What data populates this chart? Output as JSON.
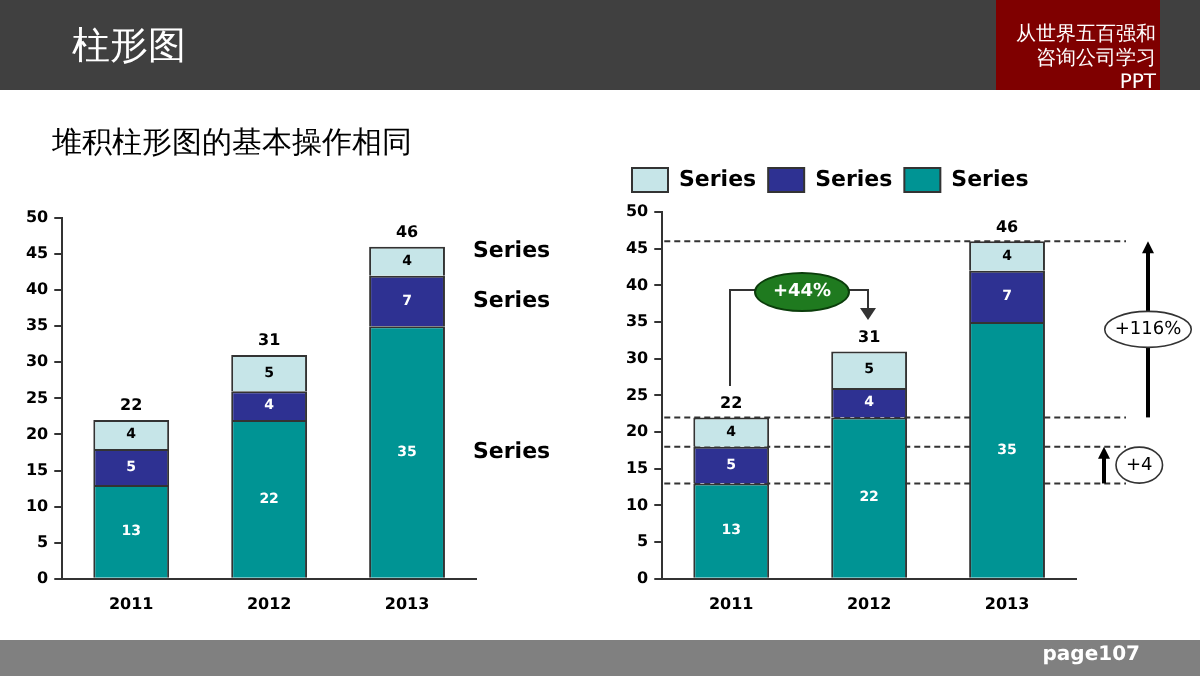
{
  "chart_data": [
    {
      "type": "bar",
      "title": "柱形图",
      "subtitle": "堆积柱形图的基本操作相同",
      "annotations": [
        "从世界五百强和咨询公司学习PPT"
      ],
      "categories": [
        "2011",
        "2012",
        "2013"
      ],
      "stacked": true,
      "series": [
        {
          "name": "Series",
          "color": "#009494",
          "values": [
            13,
            22,
            35
          ]
        },
        {
          "name": "Series",
          "color": "#2e3192",
          "values": [
            5,
            4,
            7
          ]
        },
        {
          "name": "Series",
          "color": "#c6e5e8",
          "values": [
            4,
            5,
            4
          ]
        }
      ],
      "totals": [
        "22",
        "31",
        "46"
      ],
      "data_labels": true,
      "ylim": [
        0,
        50
      ],
      "yticks": [
        0,
        5,
        10,
        15,
        20,
        25,
        30,
        35,
        40,
        45,
        50
      ],
      "grid": false
    },
    {
      "type": "bar",
      "annotations": [
        "+44%",
        "page107",
        {
          "text": "+116%",
          "y": 34
        },
        {
          "text": "+4",
          "y": 15.5
        }
      ],
      "categories": [
        "2011",
        "2012",
        "2013"
      ],
      "stacked": true,
      "series": [
        {
          "name": "Series",
          "color": "#009494",
          "values": [
            13,
            22,
            35
          ]
        },
        {
          "name": "Series",
          "color": "#2e3192",
          "values": [
            5,
            4,
            7
          ]
        },
        {
          "name": "Series",
          "color": "#c6e5e8",
          "values": [
            4,
            5,
            4
          ]
        }
      ],
      "totals": [
        "22",
        "31",
        "46"
      ],
      "data_labels": true,
      "ylim": [
        0,
        50
      ],
      "yticks": [
        0,
        5,
        10,
        15,
        20,
        25,
        30,
        35,
        40,
        45,
        50
      ],
      "grid": false,
      "legend": "top",
      "ref_lines": [
        {
          "axis": "y",
          "value": 46,
          "line_style": "dashed"
        },
        {
          "axis": "y",
          "value": 22,
          "line_style": "dashed"
        },
        {
          "axis": "y",
          "value": 18,
          "line_style": "dashed"
        },
        {
          "axis": "y",
          "value": 13,
          "line_style": "dashed"
        }
      ]
    }
  ]
}
